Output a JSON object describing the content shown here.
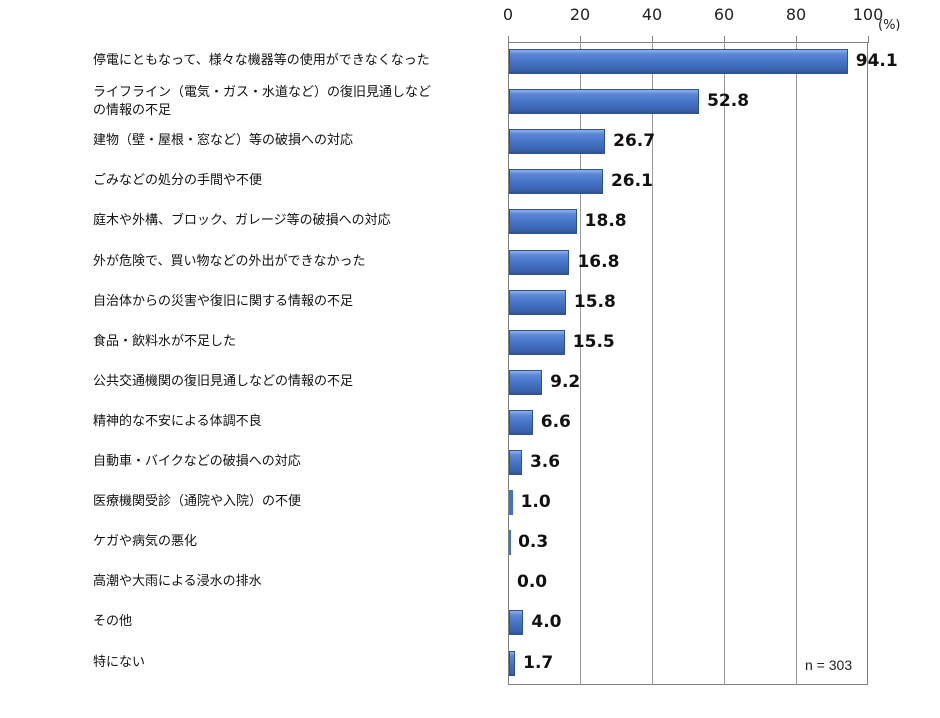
{
  "chart_data": {
    "type": "bar",
    "orientation": "horizontal",
    "title": "",
    "xlabel": "",
    "ylabel": "",
    "unit": "(%)",
    "xlim": [
      0,
      100
    ],
    "x_ticks": [
      "0",
      "20",
      "40",
      "60",
      "80",
      "100"
    ],
    "grid": true,
    "legend": null,
    "annotation": "n = 303",
    "categories": [
      "停電にともなって、様々な機器等の使用ができなくなった",
      "ライフライン（電気・ガス・水道など）の復旧見通しなどの情報の不足",
      "建物（壁・屋根・窓など）等の破損への対応",
      "ごみなどの処分の手間や不便",
      "庭木や外構、ブロック、ガレージ等の破損への対応",
      "外が危険で、買い物などの外出ができなかった",
      "自治体からの災害や復旧に関する情報の不足",
      "食品・飲料水が不足した",
      "公共交通機関の復旧見通しなどの情報の不足",
      "精神的な不安による体調不良",
      "自動車・バイクなどの破損への対応",
      "医療機関受診（通院や入院）の不便",
      "ケガや病気の悪化",
      "高潮や大雨による浸水の排水",
      "その他",
      "特にない"
    ],
    "label_lines": [
      [
        "停電にともなって、様々な機器等の使用ができなくなった"
      ],
      [
        "ライフライン（電気・ガス・水道など）の復旧見通しなど",
        "の情報の不足"
      ],
      [
        "建物（壁・屋根・窓など）等の破損への対応"
      ],
      [
        "ごみなどの処分の手間や不便"
      ],
      [
        "庭木や外構、ブロック、ガレージ等の破損への対応"
      ],
      [
        "外が危険で、買い物などの外出ができなかった"
      ],
      [
        "自治体からの災害や復旧に関する情報の不足"
      ],
      [
        "食品・飲料水が不足した"
      ],
      [
        "公共交通機関の復旧見通しなどの情報の不足"
      ],
      [
        "精神的な不安による体調不良"
      ],
      [
        "自動車・バイクなどの破損への対応"
      ],
      [
        "医療機関受診（通院や入院）の不便"
      ],
      [
        "ケガや病気の悪化"
      ],
      [
        "高潮や大雨による浸水の排水"
      ],
      [
        "その他"
      ],
      [
        "特にない"
      ]
    ],
    "values": [
      94.1,
      52.8,
      26.7,
      26.1,
      18.8,
      16.8,
      15.8,
      15.5,
      9.2,
      6.6,
      3.6,
      1.0,
      0.3,
      0.0,
      4.0,
      1.7
    ],
    "value_labels": [
      "94.1",
      "52.8",
      "26.7",
      "26.1",
      "18.8",
      "16.8",
      "15.8",
      "15.5",
      "9.2",
      "6.6",
      "3.6",
      "1.0",
      "0.3",
      "0.0",
      "4.0",
      "1.7"
    ],
    "colors": {
      "bar": "#4472c4",
      "bar_border": "#2f528f",
      "grid": "#9a9a9a",
      "axis": "#7f7f7f"
    }
  }
}
